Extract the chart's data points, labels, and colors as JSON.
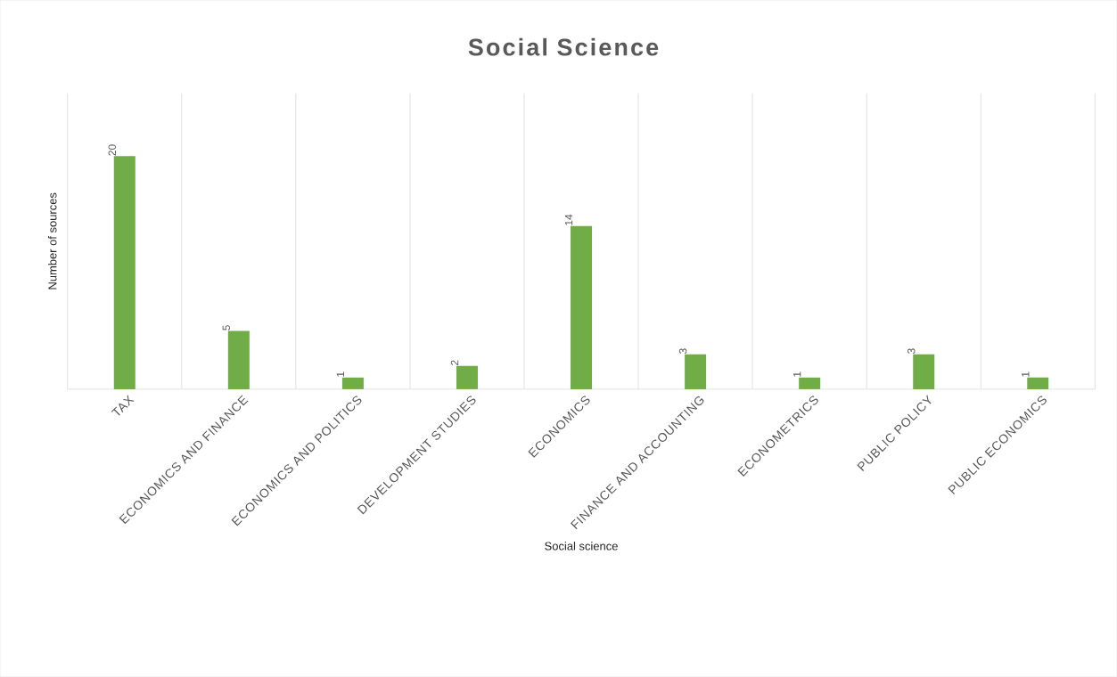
{
  "chart_data": {
    "type": "bar",
    "title": "Social Science",
    "xlabel": "Social science",
    "ylabel": "Number of sources",
    "categories": [
      "TAX",
      "ECONOMICS AND FINANCE",
      "ECONOMICS AND POLITICS",
      "DEVELOPMENT STUDIES",
      "ECONOMICS",
      "FINANCE AND ACCOUNTING",
      "ECONOMETRICS",
      "PUBLIC POLICY",
      "PUBLIC ECONOMICS"
    ],
    "values": [
      20,
      5,
      1,
      2,
      14,
      3,
      1,
      3,
      1
    ],
    "color": "#70ad47",
    "data_labels": true,
    "grid": "x"
  }
}
